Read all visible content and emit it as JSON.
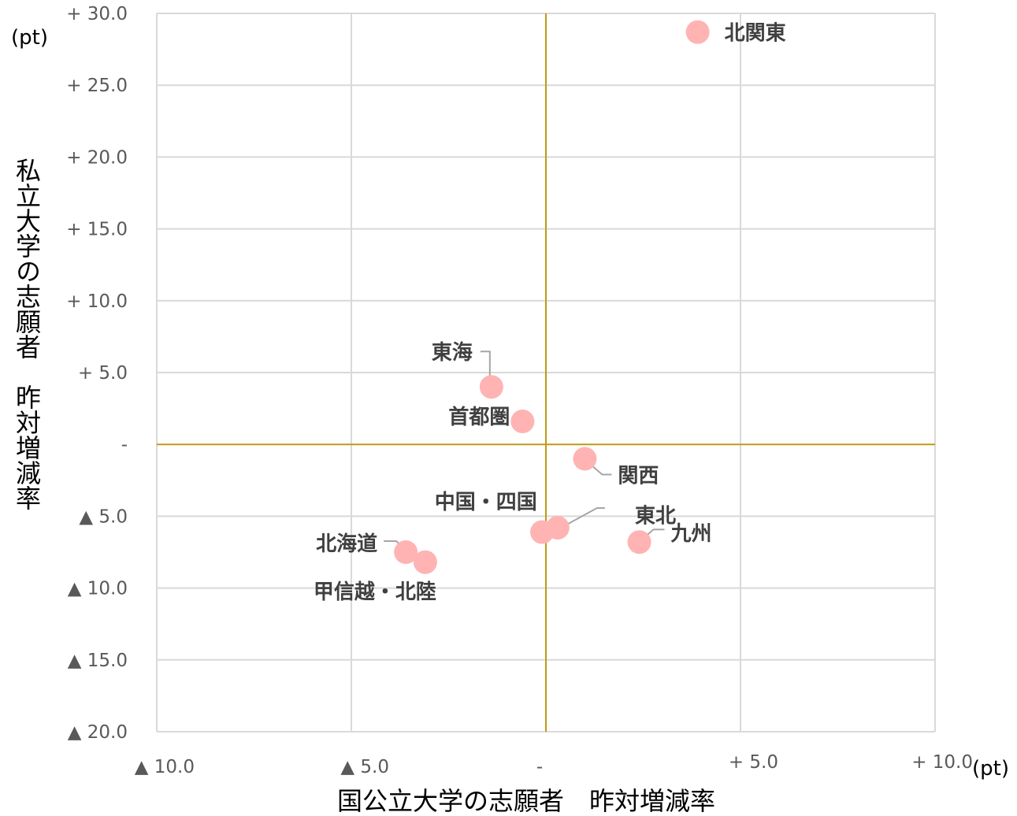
{
  "chart_data": {
    "type": "scatter",
    "xlabel": "国公立大学の志願者　昨対増減率",
    "ylabel": "私立大学の志願者　昨対増減率",
    "x_unit": "(pt)",
    "y_unit": "(pt)",
    "xlim": [
      -10,
      10
    ],
    "ylim": [
      -20,
      30
    ],
    "x_ticks": [
      {
        "value": -10,
        "label": "▲ 10.0"
      },
      {
        "value": -5,
        "label": "▲ 5.0"
      },
      {
        "value": 0,
        "label": "-"
      },
      {
        "value": 5,
        "label": "+ 5.0"
      },
      {
        "value": 10,
        "label": "+ 10.0"
      }
    ],
    "y_ticks": [
      {
        "value": 30,
        "label": "+ 30.0"
      },
      {
        "value": 25,
        "label": "+ 25.0"
      },
      {
        "value": 20,
        "label": "+ 20.0"
      },
      {
        "value": 15,
        "label": "+ 15.0"
      },
      {
        "value": 10,
        "label": "+ 10.0"
      },
      {
        "value": 5,
        "label": "+ 5.0"
      },
      {
        "value": 0,
        "label": "-"
      },
      {
        "value": -5,
        "label": "▲ 5.0"
      },
      {
        "value": -10,
        "label": "▲ 10.0"
      },
      {
        "value": -15,
        "label": "▲ 15.0"
      },
      {
        "value": -20,
        "label": "▲ 20.0"
      }
    ],
    "grid": true,
    "point_color": "#ffb3b3",
    "zero_line_color": "#c09a16",
    "grid_color": "#d9d9d9",
    "points": [
      {
        "label": "北関東",
        "x": 3.9,
        "y": 28.7
      },
      {
        "label": "東海",
        "x": -1.4,
        "y": 4.0
      },
      {
        "label": "首都圏",
        "x": -0.6,
        "y": 1.6
      },
      {
        "label": "関西",
        "x": 1.0,
        "y": -1.0
      },
      {
        "label": "中国・四国",
        "x": 0.3,
        "y": -5.8
      },
      {
        "label": "東北",
        "x": -0.1,
        "y": -6.1
      },
      {
        "label": "九州",
        "x": 2.4,
        "y": -6.8
      },
      {
        "label": "北海道",
        "x": -3.6,
        "y": -7.5
      },
      {
        "label": "甲信越・北陸",
        "x": -3.1,
        "y": -8.2
      }
    ]
  }
}
